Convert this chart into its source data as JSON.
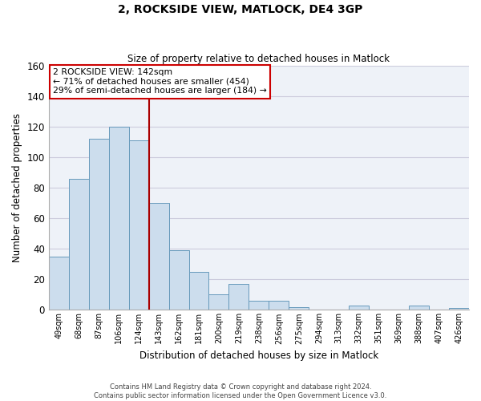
{
  "title": "2, ROCKSIDE VIEW, MATLOCK, DE4 3GP",
  "subtitle": "Size of property relative to detached houses in Matlock",
  "xlabel": "Distribution of detached houses by size in Matlock",
  "ylabel": "Number of detached properties",
  "bar_labels": [
    "49sqm",
    "68sqm",
    "87sqm",
    "106sqm",
    "124sqm",
    "143sqm",
    "162sqm",
    "181sqm",
    "200sqm",
    "219sqm",
    "238sqm",
    "256sqm",
    "275sqm",
    "294sqm",
    "313sqm",
    "332sqm",
    "351sqm",
    "369sqm",
    "388sqm",
    "407sqm",
    "426sqm"
  ],
  "bar_values": [
    35,
    86,
    112,
    120,
    111,
    70,
    39,
    25,
    10,
    17,
    6,
    6,
    2,
    0,
    0,
    3,
    0,
    0,
    3,
    0,
    1
  ],
  "bar_color": "#ccdded",
  "bar_edge_color": "#6699bb",
  "vline_x": 4.5,
  "vline_color": "#aa0000",
  "ylim": [
    0,
    160
  ],
  "yticks": [
    0,
    20,
    40,
    60,
    80,
    100,
    120,
    140,
    160
  ],
  "annotation_title": "2 ROCKSIDE VIEW: 142sqm",
  "annotation_line1": "← 71% of detached houses are smaller (454)",
  "annotation_line2": "29% of semi-detached houses are larger (184) →",
  "annotation_box_color": "#ffffff",
  "annotation_box_edge": "#cc0000",
  "footer_line1": "Contains HM Land Registry data © Crown copyright and database right 2024.",
  "footer_line2": "Contains public sector information licensed under the Open Government Licence v3.0.",
  "grid_color": "#ccccdd",
  "background_color": "#eef2f8"
}
